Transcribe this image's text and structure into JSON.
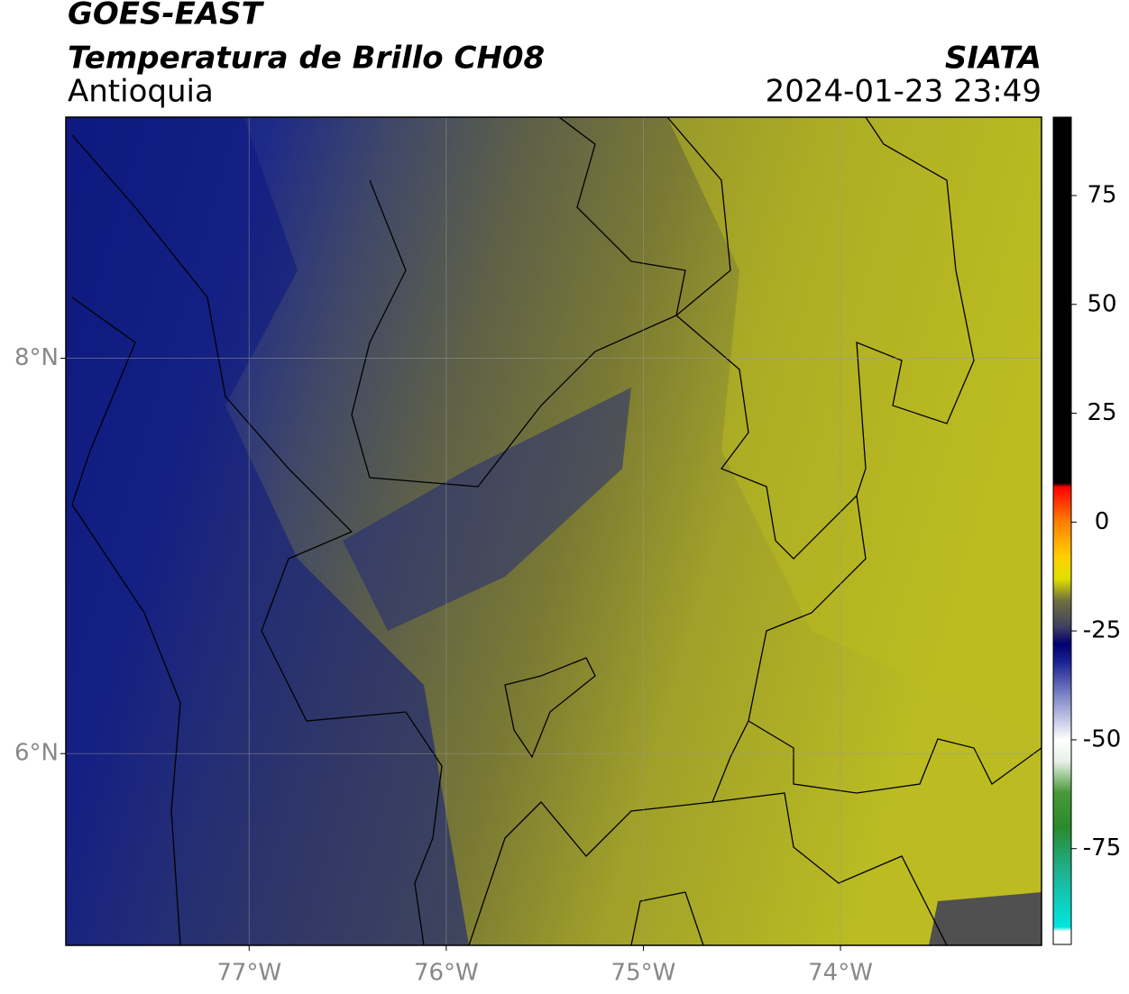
{
  "header": {
    "satellite": "GOES-EAST",
    "product": "Temperatura de Brillo CH08",
    "region": "Antioquia",
    "source": "SIATA",
    "datetime": "2024-01-23 23:49"
  },
  "map": {
    "lonlim": [
      -77.93,
      -72.98
    ],
    "latlim": [
      5.03,
      9.22
    ],
    "lonticks": [
      {
        "value": -77,
        "label": "77°W"
      },
      {
        "value": -76,
        "label": "76°W"
      },
      {
        "value": -75,
        "label": "75°W"
      },
      {
        "value": -74,
        "label": "74°W"
      }
    ],
    "latticks": [
      {
        "value": 8,
        "label": "8°N"
      },
      {
        "value": 6,
        "label": "6°N"
      }
    ],
    "grid": true
  },
  "colorbar": {
    "lim": [
      -97,
      93
    ],
    "ticks": [
      75,
      50,
      25,
      0,
      -25,
      -50,
      -75
    ],
    "stops": [
      [
        -97,
        "#ffffff"
      ],
      [
        -94,
        "#ffffff"
      ],
      [
        -93,
        "#00e6e0"
      ],
      [
        -80,
        "#20b090"
      ],
      [
        -70,
        "#2a8a2a"
      ],
      [
        -62,
        "#4a9a3a"
      ],
      [
        -55,
        "#e8f0e8"
      ],
      [
        -50,
        "#ffffff"
      ],
      [
        -40,
        "#8088c8"
      ],
      [
        -32,
        "#1a2090"
      ],
      [
        -28,
        "#000070"
      ],
      [
        -24,
        "#404060"
      ],
      [
        -18,
        "#707040"
      ],
      [
        -13,
        "#e0e000"
      ],
      [
        -8,
        "#ffd000"
      ],
      [
        0,
        "#ff8000"
      ],
      [
        6,
        "#ff2000"
      ],
      [
        8,
        "#ff0000"
      ],
      [
        9,
        "#000000"
      ],
      [
        93,
        "#000000"
      ]
    ]
  }
}
